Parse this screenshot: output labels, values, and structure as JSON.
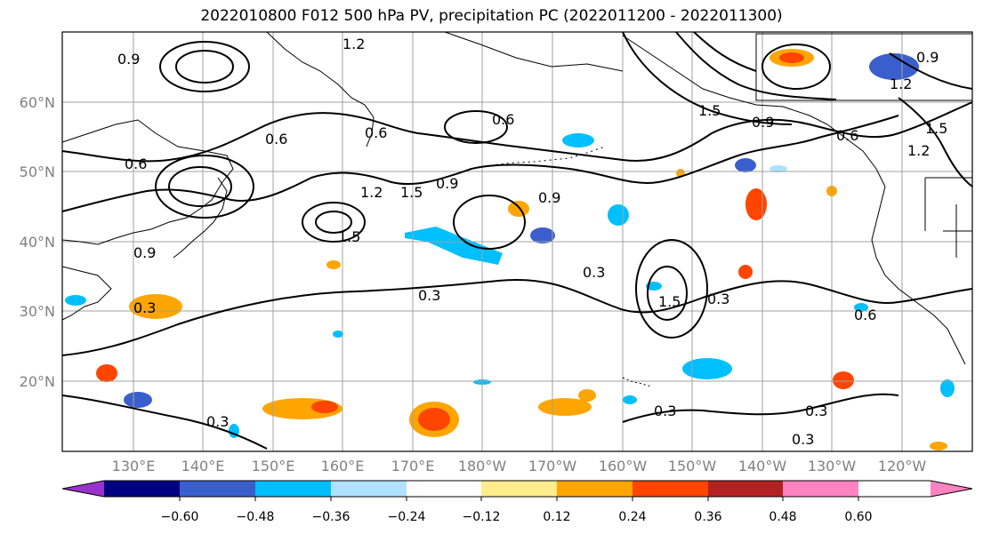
{
  "title": "2022010800 F012 500 hPa PV, precipitation PC (2022011200 - 2022011300)",
  "lat_labels": [
    "60°N",
    "50°N",
    "40°N",
    "30°N",
    "20°N"
  ],
  "lon_labels": [
    "130°E",
    "140°E",
    "150°E",
    "160°E",
    "170°E",
    "180°W",
    "170°W",
    "160°W",
    "150°W",
    "140°W",
    "130°W",
    "120°W"
  ],
  "contour_labels": [
    "0.9",
    "1.2",
    "1.5",
    "0.6",
    "0.3"
  ],
  "colorbar": {
    "colors": [
      "#9932CC",
      "#000080",
      "#3A5FCD",
      "#00BFFF",
      "#B0E2FF",
      "#FFFFFF",
      "#FFEC8B",
      "#FFA500",
      "#FF4500",
      "#B22222",
      "#FF83C0"
    ],
    "tick_labels": [
      "−0.60",
      "−0.48",
      "−0.36",
      "−0.24",
      "−0.12",
      "0.12",
      "0.24",
      "0.36",
      "0.48",
      "0.60"
    ]
  },
  "contour_color": "#000000",
  "grid_color": "#a0a0a0"
}
